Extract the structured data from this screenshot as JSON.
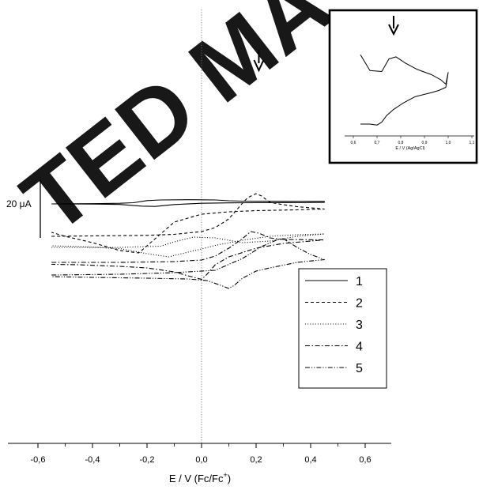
{
  "watermark": "TED MA",
  "scale_bar_label": "20 μA",
  "chart_data": [
    {
      "type": "line",
      "title": "",
      "xlabel": "E / V (Fc/Fc",
      "xlabel_sup": "+",
      "xlabel_close": ")",
      "ylabel": "",
      "xlim": [
        -0.72,
        0.7
      ],
      "x_ticks": [
        -0.6,
        -0.4,
        -0.2,
        0.0,
        0.2,
        0.4,
        0.6
      ],
      "x_tick_labels": [
        "-0,6",
        "-0,4",
        "-0,2",
        "0,0",
        "0,2",
        "0,4",
        "0,6"
      ],
      "y_ticks": false,
      "grid": false,
      "vertical_reference_line_x": 0.0,
      "annotation": "arrow at E = 0.21 V on curve 1",
      "legend": {
        "placement": "lower-right",
        "entries": [
          "1",
          "2",
          "3",
          "4",
          "5"
        ]
      },
      "series": [
        {
          "name": "1",
          "style": "solid",
          "unit": "relative current (μA)",
          "points": [
            [
              -0.55,
              -1
            ],
            [
              -0.4,
              -0.7
            ],
            [
              -0.3,
              -0.2
            ],
            [
              -0.25,
              0.5
            ],
            [
              -0.2,
              3.2
            ],
            [
              -0.15,
              4
            ],
            [
              -0.05,
              4.3
            ],
            [
              0.05,
              4
            ],
            [
              0.1,
              3
            ],
            [
              0.15,
              2.5
            ],
            [
              0.2,
              2.4
            ],
            [
              0.3,
              2.3
            ],
            [
              0.45,
              2.2
            ],
            [
              0.45,
              0.9
            ],
            [
              0.3,
              0.6
            ],
            [
              0.2,
              0.5
            ],
            [
              0.1,
              0.3
            ],
            [
              0.0,
              -0.2
            ],
            [
              -0.1,
              -1.8
            ],
            [
              -0.17,
              -4.2
            ],
            [
              -0.22,
              -3.8
            ],
            [
              -0.3,
              -1.7
            ],
            [
              -0.4,
              -1.2
            ],
            [
              -0.55,
              -1
            ]
          ]
        },
        {
          "name": "2",
          "style": "dashed",
          "unit": "relative current (μA)",
          "points": [
            [
              -0.55,
              -42
            ],
            [
              -0.4,
              -41.5
            ],
            [
              -0.2,
              -40.8
            ],
            [
              -0.1,
              -39.5
            ],
            [
              0.0,
              -36
            ],
            [
              0.05,
              -31
            ],
            [
              0.1,
              -20
            ],
            [
              0.13,
              -8
            ],
            [
              0.15,
              0
            ],
            [
              0.17,
              7
            ],
            [
              0.2,
              12
            ],
            [
              0.22,
              9
            ],
            [
              0.25,
              1
            ],
            [
              0.3,
              -2
            ],
            [
              0.35,
              -4.5
            ],
            [
              0.45,
              -7.5
            ],
            [
              0.35,
              -8.5
            ],
            [
              0.2,
              -9.5
            ],
            [
              0.1,
              -11
            ],
            [
              0.0,
              -14
            ],
            [
              -0.1,
              -24
            ],
            [
              -0.17,
              -45
            ],
            [
              -0.23,
              -63
            ],
            [
              -0.3,
              -60
            ],
            [
              -0.4,
              -50
            ],
            [
              -0.5,
              -42
            ],
            [
              -0.55,
              -37
            ]
          ]
        },
        {
          "name": "3",
          "style": "dotted",
          "unit": "relative current (μA)",
          "points": [
            [
              -0.55,
              -56
            ],
            [
              -0.3,
              -56
            ],
            [
              -0.2,
              -55
            ],
            [
              -0.15,
              -54.5
            ],
            [
              -0.1,
              -49
            ],
            [
              -0.03,
              -43
            ],
            [
              0.05,
              -44
            ],
            [
              0.15,
              -50
            ],
            [
              0.25,
              -48
            ],
            [
              0.3,
              -45
            ],
            [
              0.35,
              -42
            ],
            [
              0.42,
              -40
            ],
            [
              0.45,
              -39
            ],
            [
              0.35,
              -40
            ],
            [
              0.25,
              -42
            ],
            [
              0.15,
              -47
            ],
            [
              0.05,
              -53.5
            ],
            [
              0.0,
              -58
            ],
            [
              -0.05,
              -62
            ],
            [
              -0.12,
              -68
            ],
            [
              -0.2,
              -64
            ],
            [
              -0.3,
              -57.5
            ],
            [
              -0.45,
              -55
            ],
            [
              -0.55,
              -54
            ]
          ]
        },
        {
          "name": "4",
          "style": "dash-dot",
          "unit": "relative current (μA)",
          "points": [
            [
              -0.55,
              -75
            ],
            [
              -0.3,
              -75
            ],
            [
              -0.1,
              -74
            ],
            [
              0.0,
              -72
            ],
            [
              0.05,
              -67
            ],
            [
              0.1,
              -57
            ],
            [
              0.15,
              -45
            ],
            [
              0.18,
              -36
            ],
            [
              0.21,
              -38
            ],
            [
              0.25,
              -44
            ],
            [
              0.3,
              -46
            ],
            [
              0.45,
              -46.5
            ],
            [
              0.3,
              -51
            ],
            [
              0.2,
              -57
            ],
            [
              0.1,
              -68
            ],
            [
              0.05,
              -78
            ],
            [
              0.02,
              -90
            ],
            [
              0.0,
              -96.5
            ],
            [
              -0.05,
              -92
            ],
            [
              -0.1,
              -87
            ],
            [
              -0.2,
              -82
            ],
            [
              -0.3,
              -80
            ],
            [
              -0.45,
              -78
            ],
            [
              -0.55,
              -77.5
            ]
          ]
        },
        {
          "name": "5",
          "style": "dash-dot-dot",
          "unit": "relative current (μA)",
          "points": [
            [
              -0.55,
              -91
            ],
            [
              -0.3,
              -90
            ],
            [
              -0.1,
              -88
            ],
            [
              0.05,
              -85
            ],
            [
              0.15,
              -70
            ],
            [
              0.22,
              -55
            ],
            [
              0.28,
              -46
            ],
            [
              0.3,
              -45
            ],
            [
              0.35,
              -56
            ],
            [
              0.4,
              -65
            ],
            [
              0.45,
              -71.5
            ],
            [
              0.35,
              -75
            ],
            [
              0.25,
              -82
            ],
            [
              0.2,
              -86
            ],
            [
              0.15,
              -95
            ],
            [
              0.12,
              -104
            ],
            [
              0.1,
              -108
            ],
            [
              0.07,
              -104
            ],
            [
              0.02,
              -98
            ],
            [
              -0.05,
              -96
            ],
            [
              -0.2,
              -95
            ],
            [
              -0.4,
              -94
            ],
            [
              -0.55,
              -93
            ]
          ]
        }
      ]
    },
    {
      "type": "line",
      "title": "",
      "xlabel": "E / V (Ag/AgCl)",
      "ylabel": "",
      "xlim": [
        0.6,
        1.1
      ],
      "x_ticks": [
        0.6,
        0.7,
        0.8,
        0.9,
        1.0,
        1.1
      ],
      "x_tick_labels": [
        "0,6",
        "0,7",
        "0,8",
        "0,9",
        "1,0",
        "1,1"
      ],
      "placement": "top-right inset",
      "annotation": "arrow at E = 0.77 V",
      "series": [
        {
          "style": "solid",
          "unit": "relative current",
          "points": [
            [
              0.63,
              72
            ],
            [
              0.67,
              57
            ],
            [
              0.72,
              56
            ],
            [
              0.75,
              68
            ],
            [
              0.78,
              70
            ],
            [
              0.82,
              64
            ],
            [
              0.87,
              58
            ],
            [
              0.93,
              53
            ],
            [
              0.97,
              48
            ],
            [
              0.99,
              44
            ],
            [
              1.0,
              55
            ],
            [
              0.99,
              41
            ],
            [
              0.96,
              38
            ],
            [
              0.93,
              36
            ],
            [
              0.86,
              32
            ],
            [
              0.81,
              26
            ],
            [
              0.77,
              20
            ],
            [
              0.74,
              14
            ],
            [
              0.72,
              8
            ],
            [
              0.7,
              5
            ],
            [
              0.67,
              6
            ],
            [
              0.63,
              6
            ]
          ]
        }
      ]
    }
  ]
}
